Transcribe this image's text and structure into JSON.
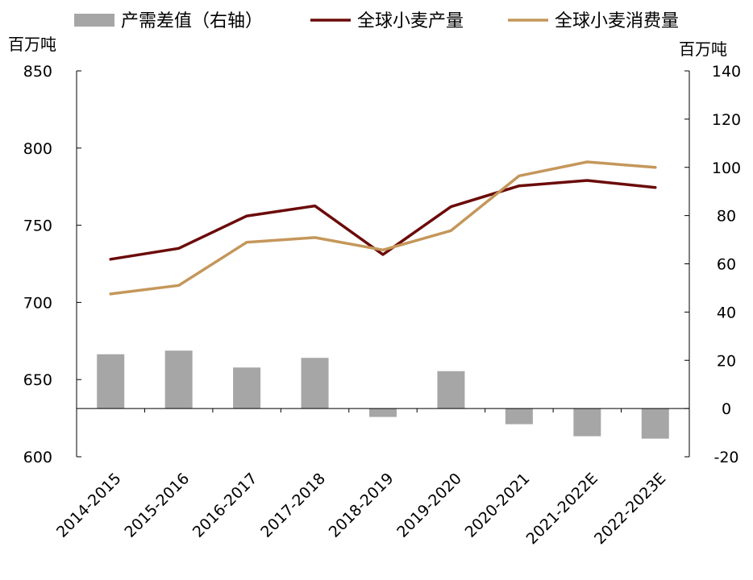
{
  "chart_data": {
    "type": "bar+line",
    "categories": [
      "2014-2015",
      "2015-2016",
      "2016-2017",
      "2017-2018",
      "2018-2019",
      "2019-2020",
      "2020-2021",
      "2021-2022E",
      "2022-2023E"
    ],
    "series": [
      {
        "name": "产需差值（右轴）",
        "type": "bar",
        "axis": "right",
        "color": "#a6a6a6",
        "values": [
          22.5,
          24,
          17,
          21,
          -3.5,
          15.5,
          -6.5,
          -11.5,
          -12.5
        ]
      },
      {
        "name": "全球小麦产量",
        "type": "line",
        "axis": "left",
        "color": "#6b0a0a",
        "values": [
          728,
          735,
          756,
          762.5,
          731,
          762,
          775.5,
          779,
          774.5
        ]
      },
      {
        "name": "全球小麦消费量",
        "type": "line",
        "axis": "left",
        "color": "#c4975a",
        "values": [
          705.5,
          711,
          739,
          742,
          734,
          746.5,
          782,
          791,
          787.5
        ]
      }
    ],
    "left_axis": {
      "unit": "百万吨",
      "ylim": [
        600,
        850
      ],
      "ticks": [
        600,
        650,
        700,
        750,
        800,
        850
      ]
    },
    "right_axis": {
      "unit": "百万吨",
      "ylim": [
        -20,
        140
      ],
      "ticks": [
        -20,
        0,
        20,
        40,
        60,
        80,
        100,
        120,
        140
      ]
    },
    "legend_position": "top",
    "grid": false
  }
}
